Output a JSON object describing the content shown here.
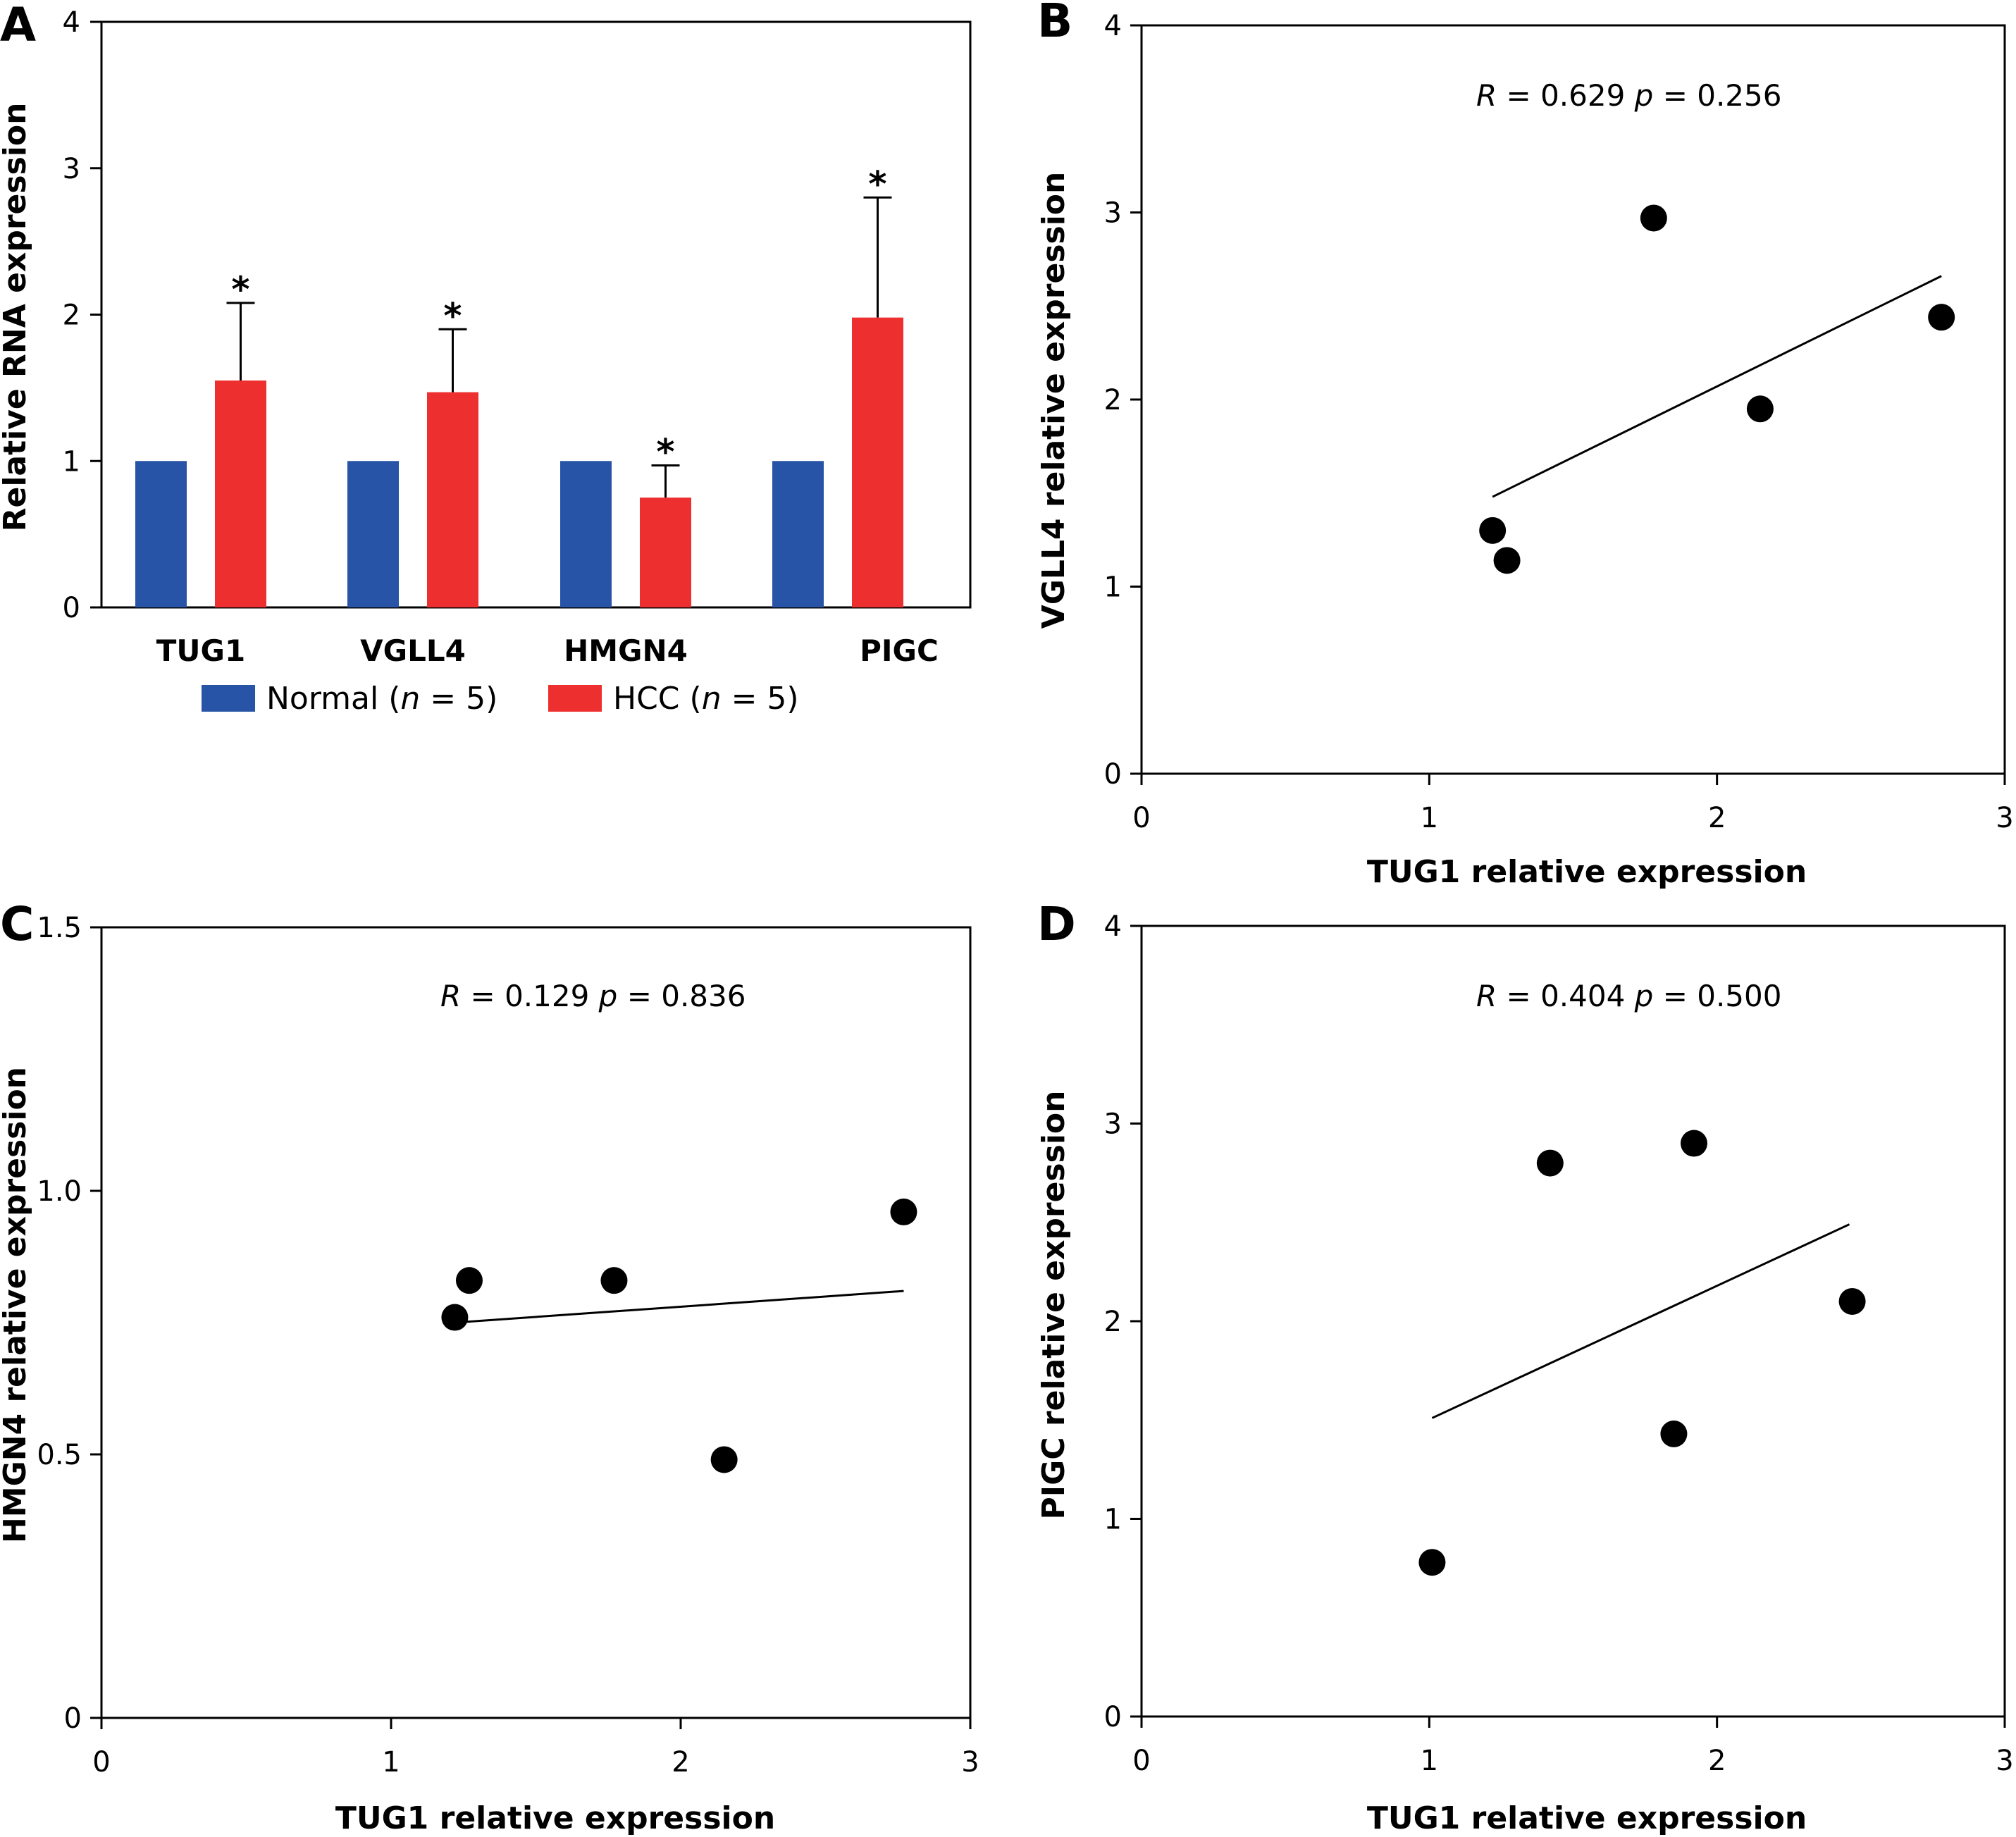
{
  "colors": {
    "normal": "#2754a6",
    "hcc": "#ee2f2f",
    "ink": "#000000"
  },
  "panels": {
    "A": {
      "letter": "A"
    },
    "B": {
      "letter": "B",
      "stat": {
        "r_symbol": "R",
        "r_text": " = 0.629 ",
        "p_symbol": "p",
        "p_text": " = 0.256"
      }
    },
    "C": {
      "letter": "C",
      "stat": {
        "r_symbol": "R",
        "r_text": " = 0.129 ",
        "p_symbol": "p",
        "p_text": " = 0.836"
      }
    },
    "D": {
      "letter": "D",
      "stat": {
        "r_symbol": "R",
        "r_text": " = 0.404 ",
        "p_symbol": "p",
        "p_text": " = 0.500"
      }
    }
  },
  "legend": {
    "normal": {
      "name": "Normal",
      "open": " (",
      "n_symbol": "n",
      "close": " = 5)"
    },
    "hcc": {
      "name": "HCC",
      "open": " (",
      "n_symbol": "n",
      "close": " = 5)"
    }
  },
  "chart_data": [
    {
      "panel": "A",
      "type": "bar",
      "categories": [
        "TUG1",
        "VGLL4",
        "HMGN4",
        "PIGC"
      ],
      "series": [
        {
          "name": "Normal (n = 5)",
          "values": [
            1.0,
            1.0,
            1.0,
            1.0
          ],
          "error": [
            0,
            0,
            0,
            0
          ]
        },
        {
          "name": "HCC (n = 5)",
          "values": [
            1.55,
            1.47,
            0.75,
            1.98
          ],
          "error": [
            0.53,
            0.43,
            0.22,
            0.82
          ]
        }
      ],
      "significance": [
        "*",
        "*",
        "*",
        "*"
      ],
      "ylabel": "Relative RNA expression",
      "ylim": [
        0,
        4
      ],
      "yticks": [
        "0",
        "1",
        "2",
        "3",
        "4"
      ],
      "legend": "bottom"
    },
    {
      "panel": "B",
      "type": "scatter",
      "xlabel": "TUG1 relative expression",
      "ylabel": "VGLL4 relative expression",
      "xlim": [
        0,
        3
      ],
      "ylim": [
        0,
        4
      ],
      "xticks": [
        "0",
        "1",
        "2",
        "3"
      ],
      "yticks": [
        "0",
        "1",
        "2",
        "3",
        "4"
      ],
      "points": [
        [
          1.22,
          1.3
        ],
        [
          1.27,
          1.14
        ],
        [
          1.78,
          2.97
        ],
        [
          2.15,
          1.95
        ],
        [
          2.78,
          2.44
        ]
      ],
      "fit": [
        [
          1.22,
          1.48
        ],
        [
          2.78,
          2.66
        ]
      ]
    },
    {
      "panel": "C",
      "type": "scatter",
      "xlabel": "TUG1 relative expression",
      "ylabel": "HMGN4 relative expression",
      "xlim": [
        0,
        3
      ],
      "ylim": [
        0,
        1.5
      ],
      "xticks": [
        "0",
        "1",
        "2",
        "3"
      ],
      "yticks": [
        "0",
        "0.5",
        "1.0",
        "1.5"
      ],
      "points": [
        [
          1.22,
          0.76
        ],
        [
          1.27,
          0.83
        ],
        [
          1.77,
          0.83
        ],
        [
          2.15,
          0.49
        ],
        [
          2.77,
          0.96
        ]
      ],
      "fit": [
        [
          1.22,
          0.75
        ],
        [
          2.77,
          0.81
        ]
      ]
    },
    {
      "panel": "D",
      "type": "scatter",
      "xlabel": "TUG1 relative expression",
      "ylabel": "PIGC relative expression",
      "xlim": [
        0,
        3
      ],
      "ylim": [
        0,
        4
      ],
      "xticks": [
        "0",
        "1",
        "2",
        "3"
      ],
      "yticks": [
        "0",
        "1",
        "2",
        "3",
        "4"
      ],
      "points": [
        [
          1.01,
          0.78
        ],
        [
          1.42,
          2.8
        ],
        [
          1.85,
          1.43
        ],
        [
          1.92,
          2.9
        ],
        [
          2.47,
          2.1
        ]
      ],
      "fit": [
        [
          1.01,
          1.51
        ],
        [
          2.46,
          2.49
        ]
      ]
    }
  ]
}
